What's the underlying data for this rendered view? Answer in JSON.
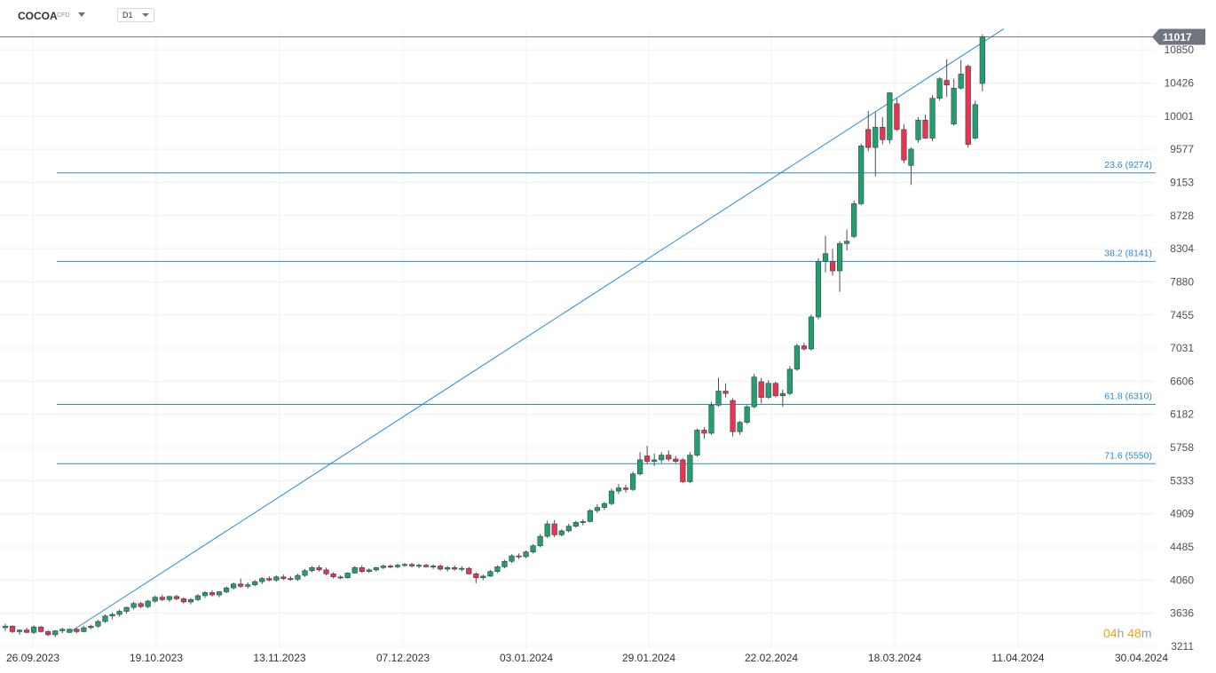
{
  "toolbar": {
    "symbol": "COCOA",
    "symbol_type": "CFD",
    "timeframe": "D1"
  },
  "countdown": {
    "hours": "04",
    "hours_unit": "h",
    "minutes": "48",
    "minutes_unit": "m"
  },
  "colors": {
    "up": "#22a06b",
    "down": "#e8344e",
    "fib": "#2a8ad6",
    "grid": "#eef0f3",
    "price_line": "#7a8089",
    "tag": "#6f7680"
  },
  "chart_data": {
    "type": "candlestick",
    "x_ticks": [
      "26.09.2023",
      "19.10.2023",
      "13.11.2023",
      "07.12.2023",
      "03.01.2024",
      "29.01.2024",
      "22.02.2024",
      "18.03.2024",
      "11.04.2024",
      "30.04.2024"
    ],
    "y_ticks": [
      3211,
      3636,
      4060,
      4485,
      4909,
      5333,
      5758,
      6182,
      6606,
      7031,
      7455,
      7880,
      8304,
      8728,
      9153,
      9577,
      10001,
      10426,
      10850
    ],
    "ylim": [
      3211,
      11017
    ],
    "last_price": "11017",
    "fib_levels": [
      {
        "label": "23.6 (9274)",
        "value": 9274
      },
      {
        "label": "38.2 (8141)",
        "value": 8141
      },
      {
        "label": "61.8 (6310)",
        "value": 6310
      },
      {
        "label": "71.6 (5550)",
        "value": 5550
      }
    ],
    "trendline": {
      "from_index": 9,
      "from_value": 3390,
      "to_index": 140,
      "to_value": 11120
    },
    "candles": [
      {
        "o": 3450,
        "h": 3500,
        "l": 3410,
        "c": 3470
      },
      {
        "o": 3470,
        "h": 3480,
        "l": 3380,
        "c": 3400
      },
      {
        "o": 3400,
        "h": 3430,
        "l": 3360,
        "c": 3420
      },
      {
        "o": 3420,
        "h": 3450,
        "l": 3380,
        "c": 3390
      },
      {
        "o": 3390,
        "h": 3480,
        "l": 3370,
        "c": 3460
      },
      {
        "o": 3460,
        "h": 3470,
        "l": 3390,
        "c": 3400
      },
      {
        "o": 3400,
        "h": 3420,
        "l": 3340,
        "c": 3360
      },
      {
        "o": 3360,
        "h": 3420,
        "l": 3330,
        "c": 3410
      },
      {
        "o": 3410,
        "h": 3450,
        "l": 3380,
        "c": 3430
      },
      {
        "o": 3390,
        "h": 3440,
        "l": 3380,
        "c": 3430
      },
      {
        "o": 3430,
        "h": 3450,
        "l": 3380,
        "c": 3400
      },
      {
        "o": 3400,
        "h": 3470,
        "l": 3390,
        "c": 3450
      },
      {
        "o": 3450,
        "h": 3490,
        "l": 3430,
        "c": 3470
      },
      {
        "o": 3470,
        "h": 3550,
        "l": 3450,
        "c": 3530
      },
      {
        "o": 3530,
        "h": 3620,
        "l": 3510,
        "c": 3600
      },
      {
        "o": 3600,
        "h": 3640,
        "l": 3560,
        "c": 3620
      },
      {
        "o": 3620,
        "h": 3680,
        "l": 3590,
        "c": 3660
      },
      {
        "o": 3660,
        "h": 3720,
        "l": 3630,
        "c": 3710
      },
      {
        "o": 3710,
        "h": 3780,
        "l": 3680,
        "c": 3760
      },
      {
        "o": 3760,
        "h": 3780,
        "l": 3700,
        "c": 3720
      },
      {
        "o": 3720,
        "h": 3810,
        "l": 3700,
        "c": 3790
      },
      {
        "o": 3790,
        "h": 3860,
        "l": 3770,
        "c": 3840
      },
      {
        "o": 3840,
        "h": 3870,
        "l": 3790,
        "c": 3810
      },
      {
        "o": 3810,
        "h": 3860,
        "l": 3780,
        "c": 3850
      },
      {
        "o": 3850,
        "h": 3870,
        "l": 3800,
        "c": 3820
      },
      {
        "o": 3820,
        "h": 3840,
        "l": 3760,
        "c": 3780
      },
      {
        "o": 3780,
        "h": 3830,
        "l": 3750,
        "c": 3810
      },
      {
        "o": 3810,
        "h": 3880,
        "l": 3790,
        "c": 3860
      },
      {
        "o": 3860,
        "h": 3920,
        "l": 3830,
        "c": 3900
      },
      {
        "o": 3900,
        "h": 3930,
        "l": 3850,
        "c": 3870
      },
      {
        "o": 3870,
        "h": 3920,
        "l": 3840,
        "c": 3910
      },
      {
        "o": 3910,
        "h": 3980,
        "l": 3890,
        "c": 3960
      },
      {
        "o": 3960,
        "h": 4030,
        "l": 3940,
        "c": 4010
      },
      {
        "o": 4010,
        "h": 4080,
        "l": 3960,
        "c": 3980
      },
      {
        "o": 3980,
        "h": 4030,
        "l": 3950,
        "c": 4000
      },
      {
        "o": 4000,
        "h": 4060,
        "l": 3980,
        "c": 4040
      },
      {
        "o": 4040,
        "h": 4100,
        "l": 4010,
        "c": 4080
      },
      {
        "o": 4080,
        "h": 4110,
        "l": 4040,
        "c": 4060
      },
      {
        "o": 4060,
        "h": 4120,
        "l": 4040,
        "c": 4100
      },
      {
        "o": 4100,
        "h": 4130,
        "l": 4060,
        "c": 4080
      },
      {
        "o": 4080,
        "h": 4110,
        "l": 4050,
        "c": 4070
      },
      {
        "o": 4070,
        "h": 4140,
        "l": 4050,
        "c": 4120
      },
      {
        "o": 4120,
        "h": 4200,
        "l": 4100,
        "c": 4180
      },
      {
        "o": 4180,
        "h": 4240,
        "l": 4160,
        "c": 4220
      },
      {
        "o": 4220,
        "h": 4250,
        "l": 4170,
        "c": 4190
      },
      {
        "o": 4190,
        "h": 4220,
        "l": 4120,
        "c": 4140
      },
      {
        "o": 4140,
        "h": 4160,
        "l": 4080,
        "c": 4100
      },
      {
        "o": 4100,
        "h": 4120,
        "l": 4070,
        "c": 4090
      },
      {
        "o": 4090,
        "h": 4160,
        "l": 4080,
        "c": 4150
      },
      {
        "o": 4150,
        "h": 4240,
        "l": 4140,
        "c": 4220
      },
      {
        "o": 4220,
        "h": 4250,
        "l": 4150,
        "c": 4170
      },
      {
        "o": 4170,
        "h": 4210,
        "l": 4150,
        "c": 4190
      },
      {
        "o": 4190,
        "h": 4230,
        "l": 4170,
        "c": 4220
      },
      {
        "o": 4220,
        "h": 4260,
        "l": 4200,
        "c": 4240
      },
      {
        "o": 4240,
        "h": 4260,
        "l": 4210,
        "c": 4230
      },
      {
        "o": 4230,
        "h": 4270,
        "l": 4210,
        "c": 4250
      },
      {
        "o": 4250,
        "h": 4280,
        "l": 4230,
        "c": 4260
      },
      {
        "o": 4260,
        "h": 4280,
        "l": 4220,
        "c": 4240
      },
      {
        "o": 4240,
        "h": 4270,
        "l": 4210,
        "c": 4250
      },
      {
        "o": 4250,
        "h": 4270,
        "l": 4220,
        "c": 4230
      },
      {
        "o": 4230,
        "h": 4260,
        "l": 4200,
        "c": 4240
      },
      {
        "o": 4240,
        "h": 4260,
        "l": 4180,
        "c": 4200
      },
      {
        "o": 4200,
        "h": 4240,
        "l": 4170,
        "c": 4220
      },
      {
        "o": 4220,
        "h": 4250,
        "l": 4180,
        "c": 4200
      },
      {
        "o": 4200,
        "h": 4240,
        "l": 4170,
        "c": 4210
      },
      {
        "o": 4210,
        "h": 4230,
        "l": 4130,
        "c": 4140
      },
      {
        "o": 4140,
        "h": 4160,
        "l": 4020,
        "c": 4090
      },
      {
        "o": 4090,
        "h": 4130,
        "l": 4060,
        "c": 4110
      },
      {
        "o": 4110,
        "h": 4190,
        "l": 4100,
        "c": 4170
      },
      {
        "o": 4170,
        "h": 4250,
        "l": 4150,
        "c": 4230
      },
      {
        "o": 4230,
        "h": 4320,
        "l": 4210,
        "c": 4300
      },
      {
        "o": 4300,
        "h": 4390,
        "l": 4280,
        "c": 4370
      },
      {
        "o": 4370,
        "h": 4400,
        "l": 4330,
        "c": 4360
      },
      {
        "o": 4360,
        "h": 4440,
        "l": 4340,
        "c": 4420
      },
      {
        "o": 4420,
        "h": 4520,
        "l": 4400,
        "c": 4500
      },
      {
        "o": 4500,
        "h": 4650,
        "l": 4480,
        "c": 4620
      },
      {
        "o": 4620,
        "h": 4820,
        "l": 4600,
        "c": 4780
      },
      {
        "o": 4780,
        "h": 4830,
        "l": 4610,
        "c": 4640
      },
      {
        "o": 4640,
        "h": 4710,
        "l": 4620,
        "c": 4690
      },
      {
        "o": 4690,
        "h": 4780,
        "l": 4670,
        "c": 4750
      },
      {
        "o": 4750,
        "h": 4820,
        "l": 4730,
        "c": 4800
      },
      {
        "o": 4800,
        "h": 4840,
        "l": 4760,
        "c": 4810
      },
      {
        "o": 4810,
        "h": 4970,
        "l": 4800,
        "c": 4950
      },
      {
        "o": 4950,
        "h": 5030,
        "l": 4920,
        "c": 4990
      },
      {
        "o": 4990,
        "h": 5060,
        "l": 4960,
        "c": 5040
      },
      {
        "o": 5040,
        "h": 5230,
        "l": 5020,
        "c": 5200
      },
      {
        "o": 5200,
        "h": 5290,
        "l": 5160,
        "c": 5240
      },
      {
        "o": 5240,
        "h": 5280,
        "l": 5180,
        "c": 5220
      },
      {
        "o": 5220,
        "h": 5450,
        "l": 5200,
        "c": 5420
      },
      {
        "o": 5420,
        "h": 5700,
        "l": 5400,
        "c": 5600
      },
      {
        "o": 5650,
        "h": 5780,
        "l": 5550,
        "c": 5580
      },
      {
        "o": 5580,
        "h": 5680,
        "l": 5520,
        "c": 5600
      },
      {
        "o": 5600,
        "h": 5700,
        "l": 5560,
        "c": 5660
      },
      {
        "o": 5660,
        "h": 5720,
        "l": 5580,
        "c": 5610
      },
      {
        "o": 5610,
        "h": 5650,
        "l": 5560,
        "c": 5580
      },
      {
        "o": 5600,
        "h": 5620,
        "l": 5300,
        "c": 5320
      },
      {
        "o": 5320,
        "h": 5700,
        "l": 5300,
        "c": 5660
      },
      {
        "o": 5660,
        "h": 6000,
        "l": 5640,
        "c": 5980
      },
      {
        "o": 5980,
        "h": 6020,
        "l": 5870,
        "c": 5940
      },
      {
        "o": 5940,
        "h": 6340,
        "l": 5920,
        "c": 6300
      },
      {
        "o": 6300,
        "h": 6650,
        "l": 6280,
        "c": 6480
      },
      {
        "o": 6480,
        "h": 6580,
        "l": 6400,
        "c": 6450
      },
      {
        "o": 6360,
        "h": 6390,
        "l": 5900,
        "c": 5960
      },
      {
        "o": 5960,
        "h": 6100,
        "l": 5920,
        "c": 6080
      },
      {
        "o": 6080,
        "h": 6300,
        "l": 6060,
        "c": 6280
      },
      {
        "o": 6280,
        "h": 6700,
        "l": 6260,
        "c": 6660
      },
      {
        "o": 6600,
        "h": 6650,
        "l": 6320,
        "c": 6400
      },
      {
        "o": 6400,
        "h": 6620,
        "l": 6380,
        "c": 6580
      },
      {
        "o": 6580,
        "h": 6600,
        "l": 6400,
        "c": 6420
      },
      {
        "o": 6420,
        "h": 6500,
        "l": 6280,
        "c": 6450
      },
      {
        "o": 6450,
        "h": 6800,
        "l": 6430,
        "c": 6760
      },
      {
        "o": 6760,
        "h": 7090,
        "l": 6740,
        "c": 7060
      },
      {
        "o": 7060,
        "h": 7100,
        "l": 7000,
        "c": 7020
      },
      {
        "o": 7020,
        "h": 7460,
        "l": 7000,
        "c": 7430
      },
      {
        "o": 7430,
        "h": 8180,
        "l": 7400,
        "c": 8140
      },
      {
        "o": 8140,
        "h": 8470,
        "l": 8000,
        "c": 8240
      },
      {
        "o": 8140,
        "h": 8300,
        "l": 7960,
        "c": 8020
      },
      {
        "o": 8020,
        "h": 8400,
        "l": 7750,
        "c": 8370
      },
      {
        "o": 8370,
        "h": 8550,
        "l": 8280,
        "c": 8400
      },
      {
        "o": 8460,
        "h": 8920,
        "l": 8440,
        "c": 8880
      },
      {
        "o": 8880,
        "h": 9650,
        "l": 8860,
        "c": 9620
      },
      {
        "o": 9830,
        "h": 10070,
        "l": 9550,
        "c": 9600
      },
      {
        "o": 9600,
        "h": 10050,
        "l": 9230,
        "c": 9860
      },
      {
        "o": 9860,
        "h": 9990,
        "l": 9640,
        "c": 9700
      },
      {
        "o": 9700,
        "h": 10310,
        "l": 9650,
        "c": 10300
      },
      {
        "o": 10160,
        "h": 10230,
        "l": 9810,
        "c": 9830
      },
      {
        "o": 9830,
        "h": 9900,
        "l": 9400,
        "c": 9440
      },
      {
        "o": 9370,
        "h": 9600,
        "l": 9120,
        "c": 9580
      },
      {
        "o": 9700,
        "h": 9990,
        "l": 9660,
        "c": 9950
      },
      {
        "o": 9950,
        "h": 10020,
        "l": 9710,
        "c": 9720
      },
      {
        "o": 9720,
        "h": 10270,
        "l": 9680,
        "c": 10230
      },
      {
        "o": 10230,
        "h": 10500,
        "l": 10200,
        "c": 10480
      },
      {
        "o": 10460,
        "h": 10730,
        "l": 10250,
        "c": 10400
      },
      {
        "o": 9900,
        "h": 10480,
        "l": 9880,
        "c": 10360
      },
      {
        "o": 10360,
        "h": 10720,
        "l": 10340,
        "c": 10540
      },
      {
        "o": 10640,
        "h": 10660,
        "l": 9600,
        "c": 9640
      },
      {
        "o": 9720,
        "h": 10200,
        "l": 9700,
        "c": 10150
      },
      {
        "o": 10420,
        "h": 11050,
        "l": 10320,
        "c": 11017
      }
    ]
  }
}
